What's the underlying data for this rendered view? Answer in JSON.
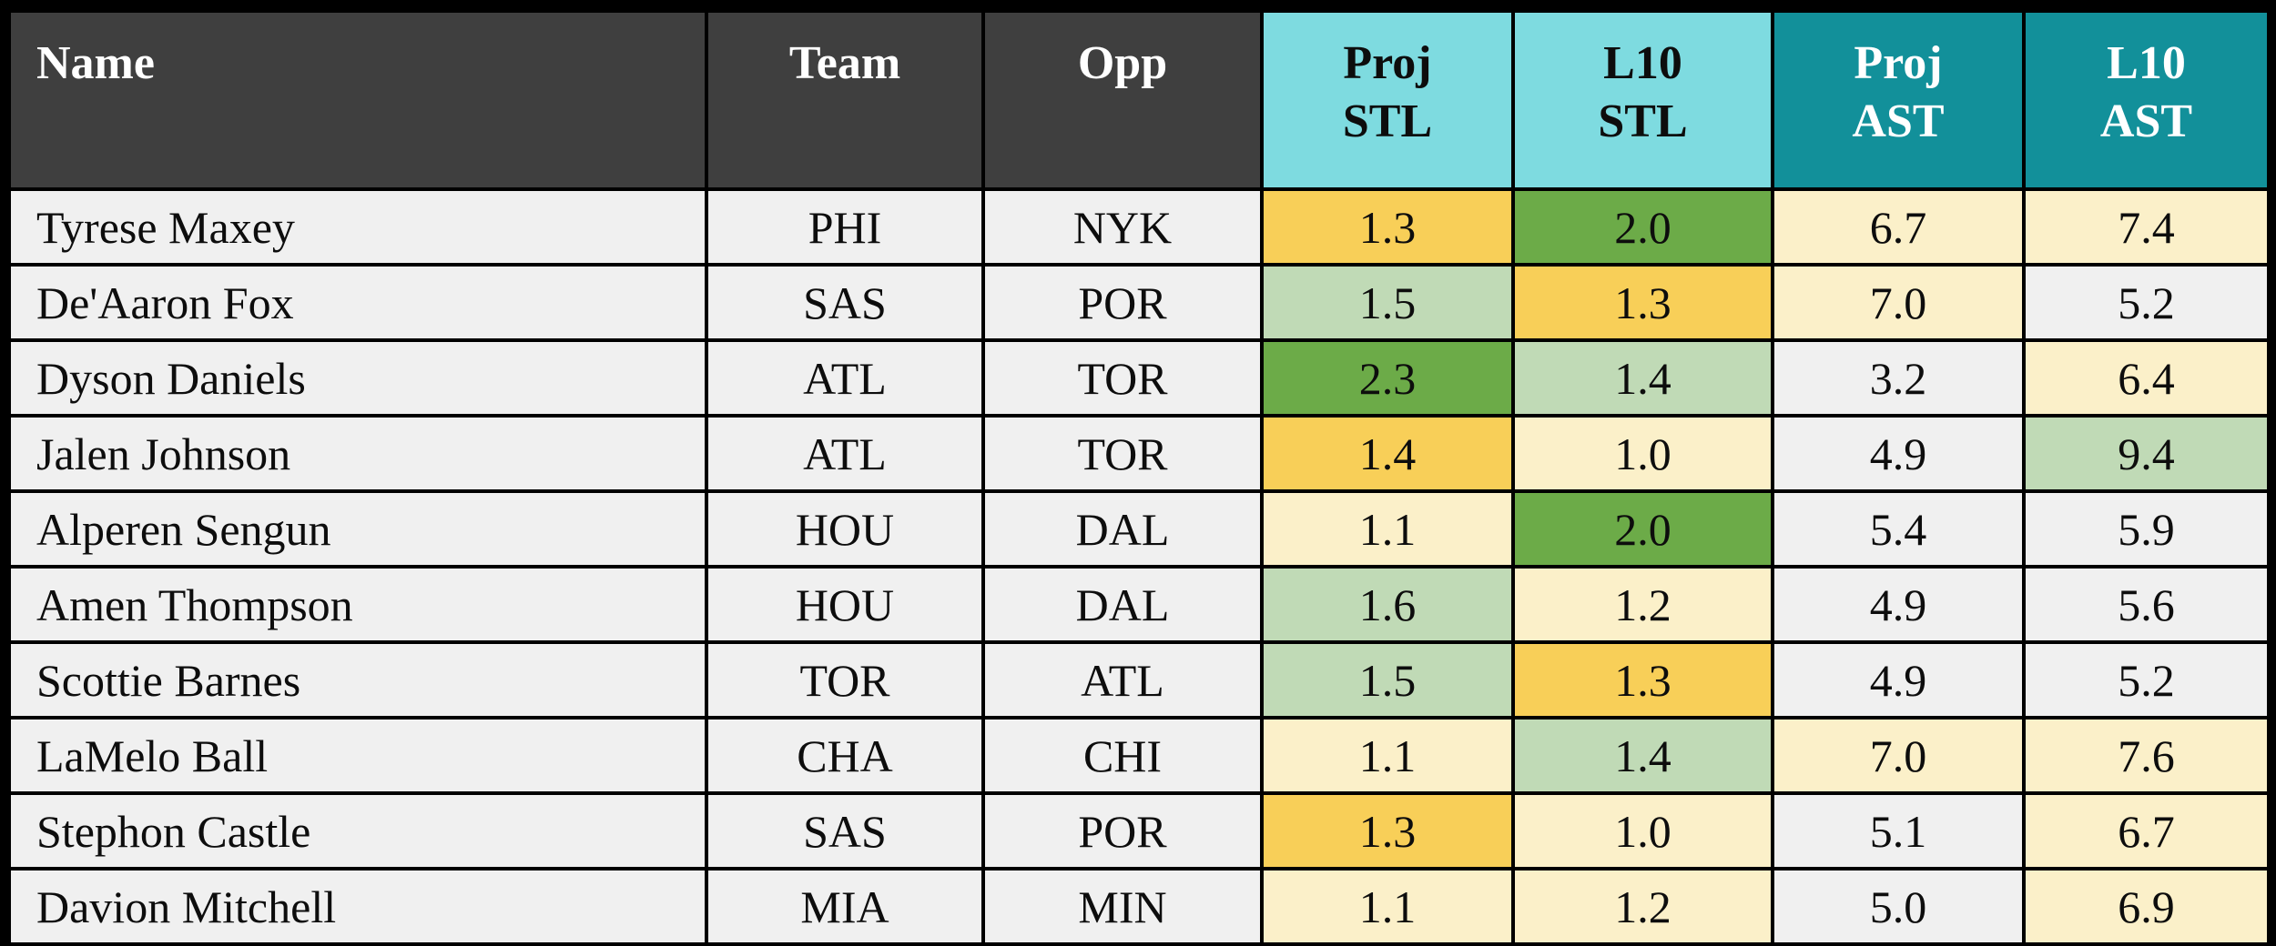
{
  "chart_data": {
    "type": "table",
    "title": "",
    "columns": [
      {
        "id": "name",
        "lines": [
          "Name"
        ],
        "header_style": "dark",
        "align": "left"
      },
      {
        "id": "team",
        "lines": [
          "Team"
        ],
        "header_style": "dark",
        "align": "center"
      },
      {
        "id": "opp",
        "lines": [
          "Opp"
        ],
        "header_style": "dark",
        "align": "center"
      },
      {
        "id": "proj_stl",
        "lines": [
          "Proj",
          "STL"
        ],
        "header_style": "stl",
        "align": "center"
      },
      {
        "id": "l10_stl",
        "lines": [
          "L10",
          "STL"
        ],
        "header_style": "stl",
        "align": "center"
      },
      {
        "id": "proj_ast",
        "lines": [
          "Proj",
          "AST"
        ],
        "header_style": "ast",
        "align": "center"
      },
      {
        "id": "l10_ast",
        "lines": [
          "L10",
          "AST"
        ],
        "header_style": "ast",
        "align": "center"
      }
    ],
    "rows": [
      {
        "name": "Tyrese Maxey",
        "team": "PHI",
        "opp": "NYK",
        "proj_stl": {
          "value": "1.3",
          "highlight": "gold"
        },
        "l10_stl": {
          "value": "2.0",
          "highlight": "green"
        },
        "proj_ast": {
          "value": "6.7",
          "highlight": "cream"
        },
        "l10_ast": {
          "value": "7.4",
          "highlight": "cream"
        }
      },
      {
        "name": "De'Aaron Fox",
        "team": "SAS",
        "opp": "POR",
        "proj_stl": {
          "value": "1.5",
          "highlight": "light-green"
        },
        "l10_stl": {
          "value": "1.3",
          "highlight": "gold"
        },
        "proj_ast": {
          "value": "7.0",
          "highlight": "cream"
        },
        "l10_ast": {
          "value": "5.2",
          "highlight": "plain"
        }
      },
      {
        "name": "Dyson Daniels",
        "team": "ATL",
        "opp": "TOR",
        "proj_stl": {
          "value": "2.3",
          "highlight": "green"
        },
        "l10_stl": {
          "value": "1.4",
          "highlight": "light-green"
        },
        "proj_ast": {
          "value": "3.2",
          "highlight": "plain"
        },
        "l10_ast": {
          "value": "6.4",
          "highlight": "cream"
        }
      },
      {
        "name": "Jalen Johnson",
        "team": "ATL",
        "opp": "TOR",
        "proj_stl": {
          "value": "1.4",
          "highlight": "gold"
        },
        "l10_stl": {
          "value": "1.0",
          "highlight": "cream"
        },
        "proj_ast": {
          "value": "4.9",
          "highlight": "plain"
        },
        "l10_ast": {
          "value": "9.4",
          "highlight": "light-green"
        }
      },
      {
        "name": "Alperen Sengun",
        "team": "HOU",
        "opp": "DAL",
        "proj_stl": {
          "value": "1.1",
          "highlight": "cream"
        },
        "l10_stl": {
          "value": "2.0",
          "highlight": "green"
        },
        "proj_ast": {
          "value": "5.4",
          "highlight": "plain"
        },
        "l10_ast": {
          "value": "5.9",
          "highlight": "plain"
        }
      },
      {
        "name": "Amen Thompson",
        "team": "HOU",
        "opp": "DAL",
        "proj_stl": {
          "value": "1.6",
          "highlight": "light-green"
        },
        "l10_stl": {
          "value": "1.2",
          "highlight": "cream"
        },
        "proj_ast": {
          "value": "4.9",
          "highlight": "plain"
        },
        "l10_ast": {
          "value": "5.6",
          "highlight": "plain"
        }
      },
      {
        "name": "Scottie Barnes",
        "team": "TOR",
        "opp": "ATL",
        "proj_stl": {
          "value": "1.5",
          "highlight": "light-green"
        },
        "l10_stl": {
          "value": "1.3",
          "highlight": "gold"
        },
        "proj_ast": {
          "value": "4.9",
          "highlight": "plain"
        },
        "l10_ast": {
          "value": "5.2",
          "highlight": "plain"
        }
      },
      {
        "name": "LaMelo Ball",
        "team": "CHA",
        "opp": "CHI",
        "proj_stl": {
          "value": "1.1",
          "highlight": "cream"
        },
        "l10_stl": {
          "value": "1.4",
          "highlight": "light-green"
        },
        "proj_ast": {
          "value": "7.0",
          "highlight": "cream"
        },
        "l10_ast": {
          "value": "7.6",
          "highlight": "cream"
        }
      },
      {
        "name": "Stephon Castle",
        "team": "SAS",
        "opp": "POR",
        "proj_stl": {
          "value": "1.3",
          "highlight": "gold"
        },
        "l10_stl": {
          "value": "1.0",
          "highlight": "cream"
        },
        "proj_ast": {
          "value": "5.1",
          "highlight": "plain"
        },
        "l10_ast": {
          "value": "6.7",
          "highlight": "cream"
        }
      },
      {
        "name": "Davion Mitchell",
        "team": "MIA",
        "opp": "MIN",
        "proj_stl": {
          "value": "1.1",
          "highlight": "cream"
        },
        "l10_stl": {
          "value": "1.2",
          "highlight": "cream"
        },
        "proj_ast": {
          "value": "5.0",
          "highlight": "plain"
        },
        "l10_ast": {
          "value": "6.9",
          "highlight": "cream"
        }
      }
    ]
  },
  "colors": {
    "header_dark_bg": "#3f3f3f",
    "header_stl_bg": "#7edbe0",
    "header_ast_bg": "#12909a",
    "row_bg": "#f0f0f0",
    "highlight_gold": "#f8cf58",
    "highlight_green": "#6cab48",
    "highlight_light_green": "#c0dab6",
    "highlight_cream": "#fbf0c9",
    "border": "#000000"
  }
}
